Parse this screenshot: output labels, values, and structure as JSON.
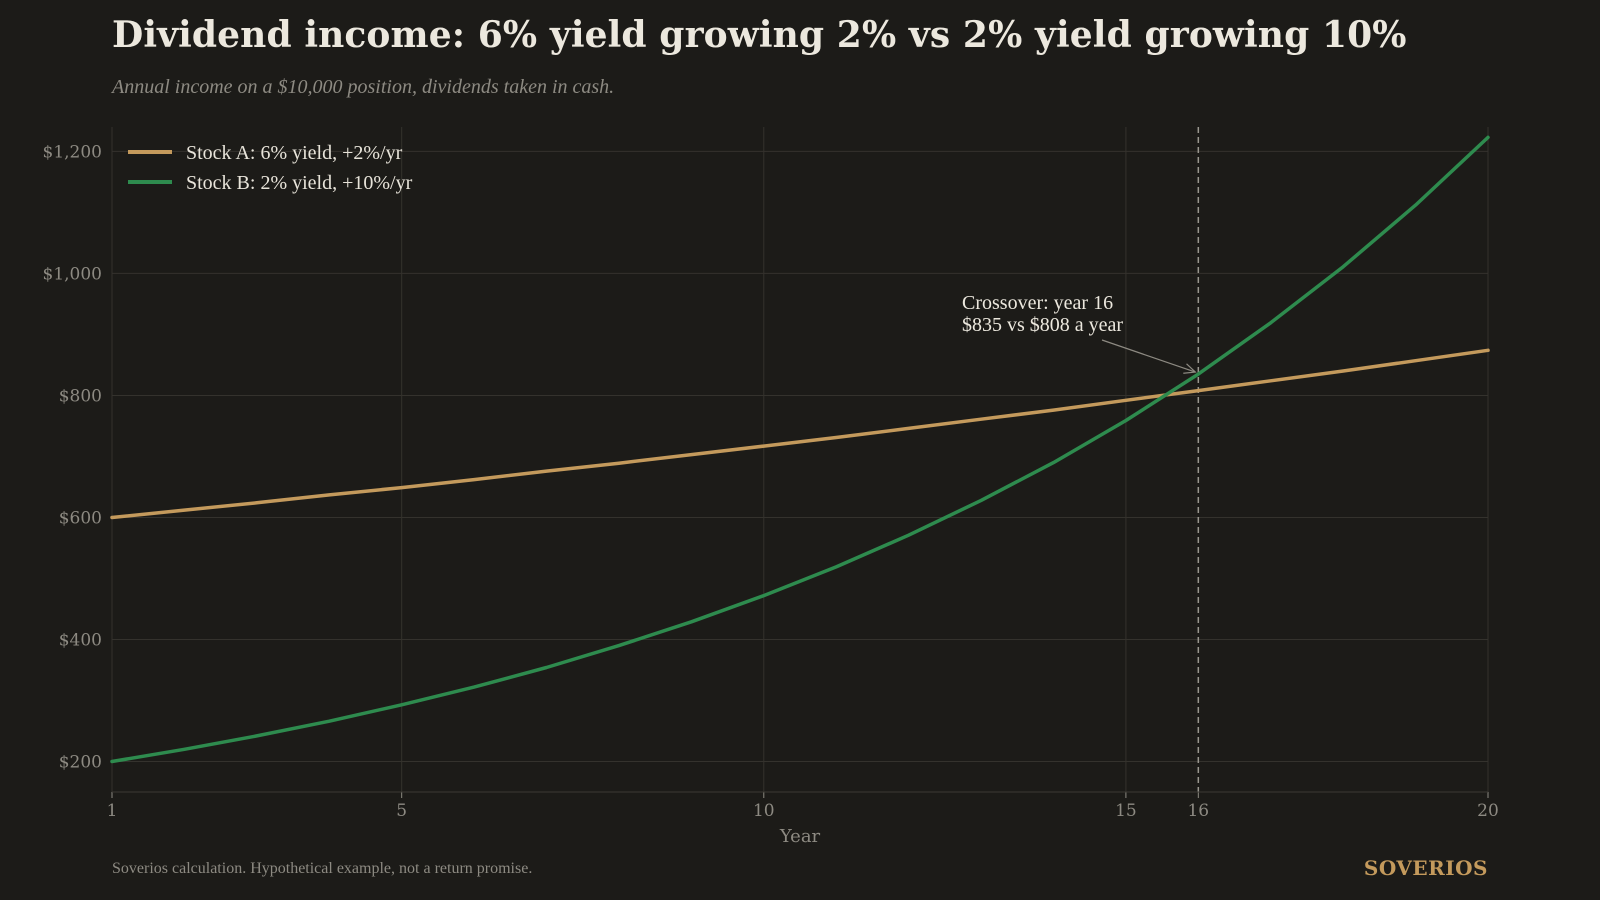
{
  "title": "Dividend income: 6% yield growing 2% vs 2% yield growing 10%",
  "subtitle": "Annual income on a $10,000 position, dividends taken in cash.",
  "footer_note": "Soverios calculation. Hypothetical example, not a return promise.",
  "brand": "SOVERIOS",
  "colors": {
    "background": "#1c1b18",
    "stock_a": "#c49a5c",
    "stock_b": "#2e8b4e",
    "grid": "#34322d",
    "crossover_line": "#9a978f"
  },
  "chart_data": {
    "type": "line",
    "xlabel": "Year",
    "ylabel": "",
    "xlim": [
      1,
      20
    ],
    "ylim": [
      150,
      1240
    ],
    "x_ticks": [
      1,
      5,
      10,
      15,
      16,
      20
    ],
    "y_ticks": [
      200,
      400,
      600,
      800,
      1000,
      1200
    ],
    "y_tick_labels": [
      "$200",
      "$400",
      "$600",
      "$800",
      "$1,000",
      "$1,200"
    ],
    "grid": true,
    "legend_position": "top-left",
    "x": [
      1,
      2,
      3,
      4,
      5,
      6,
      7,
      8,
      9,
      10,
      11,
      12,
      13,
      14,
      15,
      16,
      17,
      18,
      19,
      20
    ],
    "series": [
      {
        "name": "Stock A: 6% yield, +2%/yr",
        "color": "#c49a5c",
        "values": [
          600,
          612,
          624,
          637,
          649,
          662,
          676,
          689,
          703,
          717,
          731,
          746,
          761,
          776,
          792,
          808,
          824,
          840,
          857,
          874
        ]
      },
      {
        "name": "Stock B: 2% yield, +10%/yr",
        "color": "#2e8b4e",
        "values": [
          200,
          220,
          242,
          266,
          293,
          322,
          354,
          390,
          429,
          472,
          519,
          571,
          628,
          690,
          759,
          835,
          919,
          1011,
          1112,
          1223
        ]
      }
    ],
    "crossover": {
      "year": 16,
      "line1": "Crossover: year 16",
      "line2": "$835 vs $808 a year"
    }
  }
}
